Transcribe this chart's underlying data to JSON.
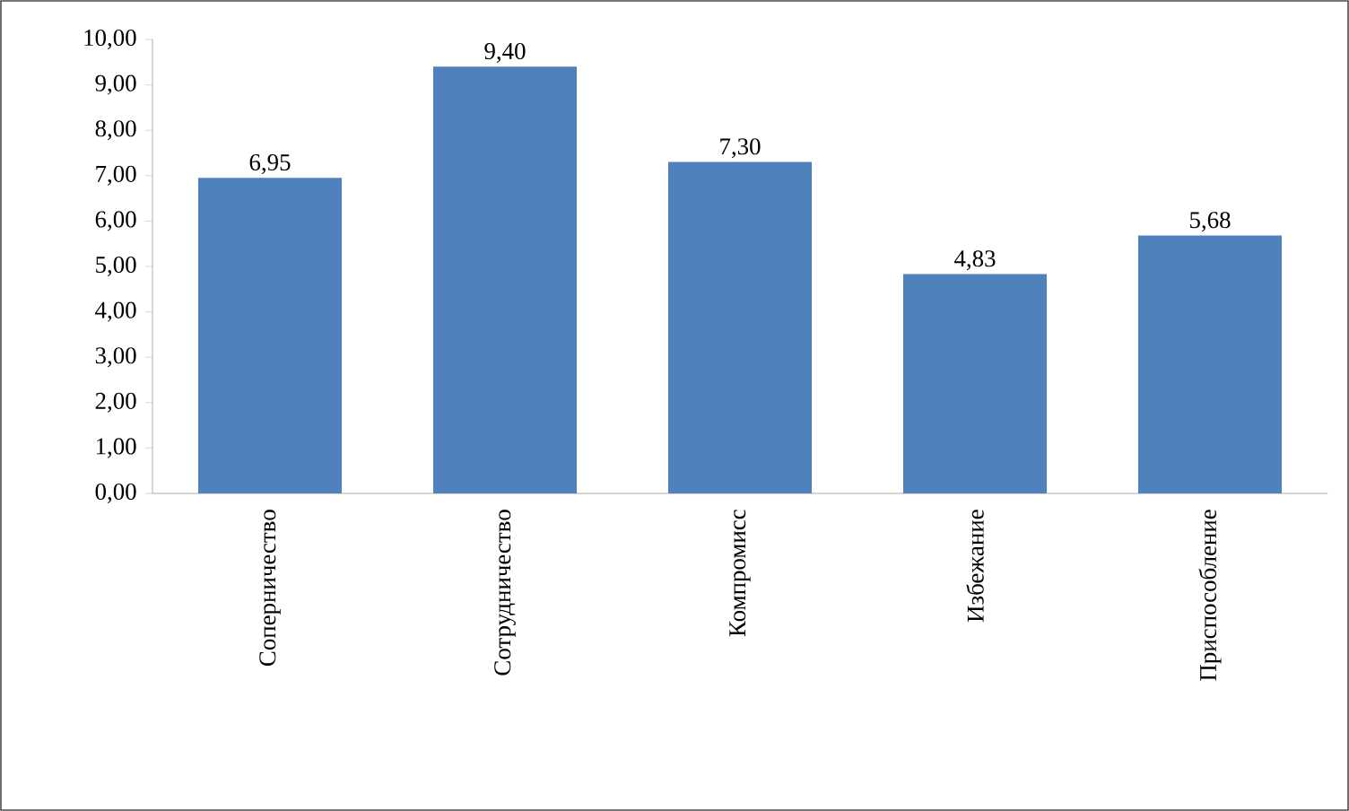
{
  "chart_data": {
    "type": "bar",
    "categories": [
      "Соперничество",
      "Сотрудничество",
      "Компромисс",
      "Избежание",
      "Приспособление"
    ],
    "values": [
      6.95,
      9.4,
      7.3,
      4.83,
      5.68
    ],
    "value_labels": [
      "6,95",
      "9,40",
      "7,30",
      "4,83",
      "5,68"
    ],
    "color": "#4f81bd",
    "ylim": [
      0,
      10
    ],
    "yticks": [
      {
        "value": 0,
        "label": "0,00"
      },
      {
        "value": 1,
        "label": "1,00"
      },
      {
        "value": 2,
        "label": "2,00"
      },
      {
        "value": 3,
        "label": "3,00"
      },
      {
        "value": 4,
        "label": "4,00"
      },
      {
        "value": 5,
        "label": "5,00"
      },
      {
        "value": 6,
        "label": "6,00"
      },
      {
        "value": 7,
        "label": "7,00"
      },
      {
        "value": 8,
        "label": "8,00"
      },
      {
        "value": 9,
        "label": "9,00"
      },
      {
        "value": 10,
        "label": "10,00"
      }
    ]
  }
}
